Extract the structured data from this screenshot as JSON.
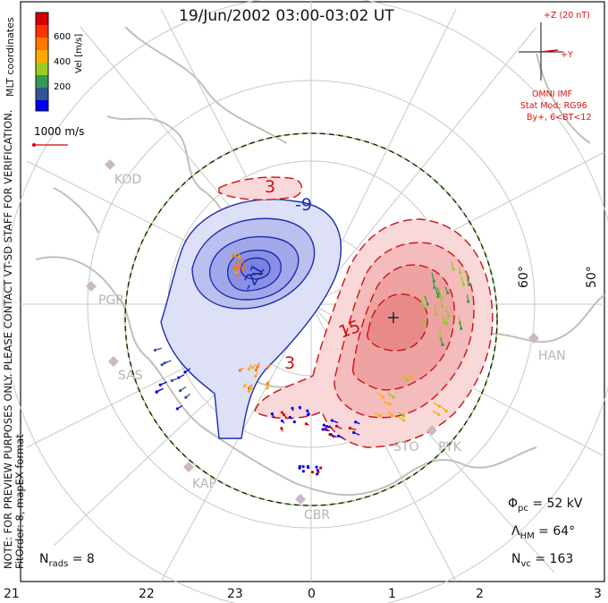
{
  "title": "19/Jun/2002 03:00-03:02 UT",
  "colorbar": {
    "label": "Vel [m/s]",
    "ticks": [
      "600",
      "400",
      "200"
    ],
    "colors": [
      "#d40000",
      "#ff6600",
      "#ffaa00",
      "#99cc00",
      "#33aa33",
      "#338866",
      "#1133bb",
      "#0000ee"
    ]
  },
  "mlt_label": "MLT coordinates",
  "scale_label": "1000 m/s",
  "imf": {
    "z_label": "+Z (20 nT)",
    "y_label": "+Y",
    "source": "OMNI IMF",
    "model": "Stat Mod: RG96",
    "condition": "By+, 6<BT<12"
  },
  "side_note": "NOTE: FOR PREVIEW PURPOSES ONLY. PLEASE CONTACT VT-SD STAFF FOR VERIFICATION.",
  "fit_order": "FitOrder: 8, mapEX format",
  "stations": [
    "KOD",
    "PGR",
    "SAS",
    "KAP",
    "CBR",
    "STO",
    "PYK",
    "HAN"
  ],
  "latitudes": [
    "60°",
    "50°"
  ],
  "contours": {
    "negative": [
      "-9",
      "-21",
      "-"
    ],
    "positive": [
      "3",
      "15",
      "3"
    ]
  },
  "stats": {
    "phi": "Φ",
    "phi_sub": "pc",
    "phi_val": " = 52 kV",
    "lambda": "Λ",
    "lambda_sub": "HM",
    "lambda_val": " = 64°",
    "nvc": "N",
    "nvc_sub": "vc",
    "nvc_val": " = 163",
    "nrads": "N",
    "nrads_sub": "rads",
    "nrads_val": " = 8"
  },
  "x_ticks": [
    "21",
    "22",
    "23",
    "0",
    "1",
    "2",
    "3"
  ],
  "colors": {
    "negative_fill": "#7b82e0",
    "positive_fill": "#f08a8a",
    "negative_line": "#1c2eb0",
    "positive_line": "#d01010"
  }
}
